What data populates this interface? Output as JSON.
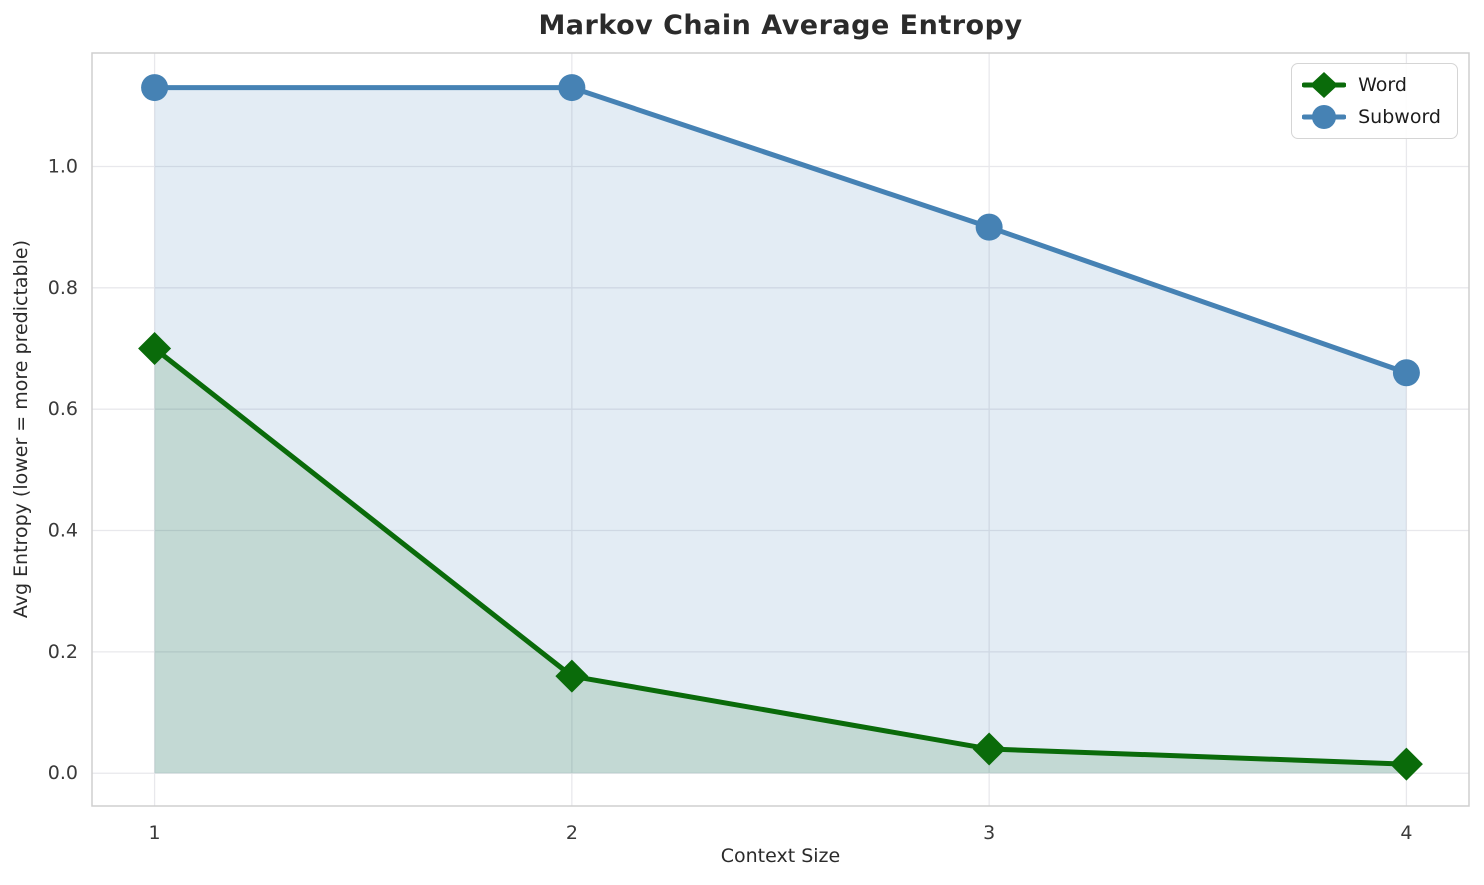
{
  "chart_data": {
    "type": "line",
    "title": "Markov Chain Average Entropy",
    "xlabel": "Context Size",
    "ylabel": "Avg Entropy (lower = more predictable)",
    "x": [
      1,
      2,
      3,
      4
    ],
    "series": [
      {
        "name": "Word",
        "color": "#0a6b0a",
        "marker": "diamond",
        "values": [
          0.7,
          0.16,
          0.04,
          0.015
        ],
        "area_fill": true
      },
      {
        "name": "Subword",
        "color": "#4682b4",
        "marker": "circle",
        "values": [
          1.13,
          1.13,
          0.9,
          0.66
        ],
        "area_fill": true
      }
    ],
    "xticks": [
      1,
      2,
      3,
      4
    ],
    "xtick_labels": [
      "1",
      "2",
      "3",
      "4"
    ],
    "yticks": [
      0.0,
      0.2,
      0.4,
      0.6,
      0.8,
      1.0
    ],
    "ytick_labels": [
      "0.0",
      "0.2",
      "0.4",
      "0.6",
      "0.8",
      "1.0"
    ],
    "xlim": [
      0.85,
      4.15
    ],
    "ylim": [
      -0.054,
      1.187
    ],
    "grid": true,
    "legend_position": "upper right",
    "fill_alpha": 0.15,
    "fill_baseline": 0.0,
    "grid_color": "#e8e8ec",
    "spine_color": "#cfcfcf",
    "tick_color": "#3a3a3a",
    "line_width": 5
  }
}
